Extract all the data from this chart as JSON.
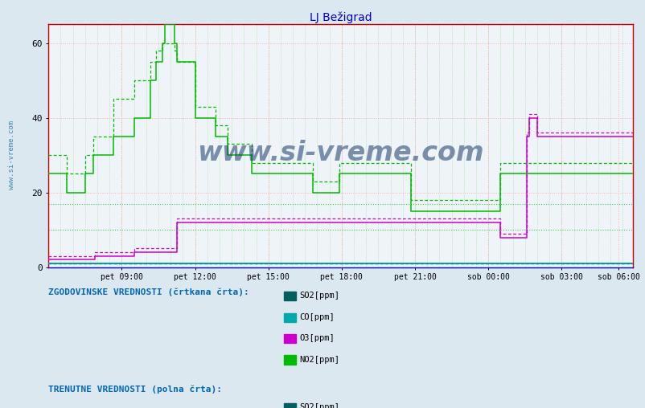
{
  "title": "LJ Bežigrad",
  "title_color": "#0000cc",
  "bg_color": "#dce8f0",
  "plot_bg_color": "#eef4f8",
  "watermark": "www.si-vreme.com",
  "watermark_color": "#1a3a6a",
  "xlim_max": 287,
  "ylim": [
    0,
    65
  ],
  "yticks": [
    0,
    20,
    40,
    60
  ],
  "xtick_labels": [
    "pet 09:00",
    "pet 12:00",
    "pet 15:00",
    "pet 18:00",
    "pet 21:00",
    "sob 00:00",
    "sob 03:00",
    "sob 06:00"
  ],
  "xtick_positions": [
    36,
    72,
    108,
    144,
    180,
    216,
    252,
    280
  ],
  "legend_hist_label": "ZGODOVINSKE VREDNOSTI (črtkana črta):",
  "legend_curr_label": "TRENUTNE VREDNOSTI (polna črta):",
  "legend_items": [
    "SO2[ppm]",
    "CO[ppm]",
    "O3[ppm]",
    "NO2[ppm]"
  ],
  "c_SO2": "#006060",
  "c_CO": "#00aaaa",
  "c_O3": "#cc00cc",
  "c_NO2": "#00bb00",
  "hlines_dotted": [
    10,
    17
  ],
  "n_points": 288,
  "NO2_solid": [
    25,
    25,
    25,
    25,
    25,
    25,
    25,
    25,
    25,
    20,
    20,
    20,
    20,
    20,
    20,
    20,
    20,
    20,
    25,
    25,
    25,
    25,
    30,
    30,
    30,
    30,
    30,
    30,
    30,
    30,
    30,
    30,
    35,
    35,
    35,
    35,
    35,
    35,
    35,
    35,
    35,
    35,
    40,
    40,
    40,
    40,
    40,
    40,
    40,
    40,
    50,
    50,
    50,
    55,
    55,
    55,
    60,
    65,
    65,
    65,
    65,
    65,
    60,
    55,
    55,
    55,
    55,
    55,
    55,
    55,
    55,
    55,
    40,
    40,
    40,
    40,
    40,
    40,
    40,
    40,
    40,
    40,
    35,
    35,
    35,
    35,
    35,
    35,
    30,
    30,
    30,
    30,
    30,
    30,
    30,
    30,
    30,
    30,
    30,
    30,
    25,
    25,
    25,
    25,
    25,
    25,
    25,
    25,
    25,
    25,
    25,
    25,
    25,
    25,
    25,
    25,
    25,
    25,
    25,
    25,
    25,
    25,
    25,
    25,
    25,
    25,
    25,
    25,
    25,
    25,
    20,
    20,
    20,
    20,
    20,
    20,
    20,
    20,
    20,
    20,
    20,
    20,
    20,
    25,
    25,
    25,
    25,
    25,
    25,
    25,
    25,
    25,
    25,
    25,
    25,
    25,
    25,
    25,
    25,
    25,
    25,
    25,
    25,
    25,
    25,
    25,
    25,
    25,
    25,
    25,
    25,
    25,
    25,
    25,
    25,
    25,
    25,
    25,
    15,
    15,
    15,
    15,
    15,
    15,
    15,
    15,
    15,
    15,
    15,
    15,
    15,
    15,
    15,
    15,
    15,
    15,
    15,
    15,
    15,
    15,
    15,
    15,
    15,
    15,
    15,
    15,
    15,
    15,
    15,
    15,
    15,
    15,
    15,
    15,
    15,
    15,
    15,
    15,
    15,
    15,
    15,
    15,
    25,
    25,
    25,
    25,
    25,
    25,
    25,
    25,
    25,
    25,
    25,
    25,
    25,
    25,
    25,
    25,
    25,
    25,
    25,
    25,
    25,
    25,
    25,
    25,
    25,
    25,
    25,
    25,
    25,
    25,
    25,
    25,
    25,
    25,
    25,
    25,
    25,
    25,
    25,
    25,
    25,
    25,
    25,
    25,
    25,
    25,
    25,
    25,
    25,
    25,
    25,
    25,
    25,
    25,
    25,
    25,
    25,
    25,
    25,
    25,
    25,
    25,
    25,
    25,
    25,
    25
  ],
  "NO2_dashed": [
    30,
    30,
    30,
    30,
    30,
    30,
    30,
    30,
    30,
    25,
    25,
    25,
    25,
    25,
    25,
    25,
    25,
    25,
    30,
    30,
    30,
    30,
    35,
    35,
    35,
    35,
    35,
    35,
    35,
    35,
    35,
    35,
    45,
    45,
    45,
    45,
    45,
    45,
    45,
    45,
    45,
    45,
    50,
    50,
    50,
    50,
    50,
    50,
    50,
    50,
    55,
    55,
    55,
    58,
    58,
    58,
    60,
    60,
    60,
    60,
    60,
    60,
    58,
    55,
    55,
    55,
    55,
    55,
    55,
    55,
    55,
    55,
    43,
    43,
    43,
    43,
    43,
    43,
    43,
    43,
    43,
    43,
    38,
    38,
    38,
    38,
    38,
    38,
    33,
    33,
    33,
    33,
    33,
    33,
    33,
    33,
    33,
    33,
    33,
    33,
    28,
    28,
    28,
    28,
    28,
    28,
    28,
    28,
    28,
    28,
    28,
    28,
    28,
    28,
    28,
    28,
    28,
    28,
    28,
    28,
    28,
    28,
    28,
    28,
    28,
    28,
    28,
    28,
    28,
    28,
    23,
    23,
    23,
    23,
    23,
    23,
    23,
    23,
    23,
    23,
    23,
    23,
    23,
    28,
    28,
    28,
    28,
    28,
    28,
    28,
    28,
    28,
    28,
    28,
    28,
    28,
    28,
    28,
    28,
    28,
    28,
    28,
    28,
    28,
    28,
    28,
    28,
    28,
    28,
    28,
    28,
    28,
    28,
    28,
    28,
    28,
    28,
    28,
    18,
    18,
    18,
    18,
    18,
    18,
    18,
    18,
    18,
    18,
    18,
    18,
    18,
    18,
    18,
    18,
    18,
    18,
    18,
    18,
    18,
    18,
    18,
    18,
    18,
    18,
    18,
    18,
    18,
    18,
    18,
    18,
    18,
    18,
    18,
    18,
    18,
    18,
    18,
    18,
    18,
    18,
    18,
    18,
    28,
    28,
    28,
    28,
    28,
    28,
    28,
    28,
    28,
    28,
    28,
    28,
    28,
    28,
    28,
    28,
    28,
    28,
    28,
    28,
    28,
    28,
    28,
    28,
    28,
    28,
    28,
    28,
    28,
    28,
    28,
    28,
    28,
    28,
    28,
    28,
    28,
    28,
    28,
    28,
    28,
    28,
    28,
    28,
    28,
    28,
    28,
    28,
    28,
    28,
    28,
    28,
    28,
    28,
    28,
    28,
    28,
    28,
    28,
    28,
    28,
    28,
    28,
    28,
    28,
    28
  ],
  "O3_solid": [
    2,
    2,
    2,
    2,
    2,
    2,
    2,
    2,
    2,
    2,
    2,
    2,
    2,
    2,
    2,
    2,
    2,
    2,
    2,
    2,
    2,
    2,
    2,
    3,
    3,
    3,
    3,
    3,
    3,
    3,
    3,
    3,
    3,
    3,
    3,
    3,
    3,
    3,
    3,
    3,
    3,
    3,
    4,
    4,
    4,
    4,
    4,
    4,
    4,
    4,
    4,
    4,
    4,
    4,
    4,
    4,
    4,
    4,
    4,
    4,
    4,
    4,
    4,
    12,
    12,
    12,
    12,
    12,
    12,
    12,
    12,
    12,
    12,
    12,
    12,
    12,
    12,
    12,
    12,
    12,
    12,
    12,
    12,
    12,
    12,
    12,
    12,
    12,
    12,
    12,
    12,
    12,
    12,
    12,
    12,
    12,
    12,
    12,
    12,
    12,
    12,
    12,
    12,
    12,
    12,
    12,
    12,
    12,
    12,
    12,
    12,
    12,
    12,
    12,
    12,
    12,
    12,
    12,
    12,
    12,
    12,
    12,
    12,
    12,
    12,
    12,
    12,
    12,
    12,
    12,
    12,
    12,
    12,
    12,
    12,
    12,
    12,
    12,
    12,
    12,
    12,
    12,
    12,
    12,
    12,
    12,
    12,
    12,
    12,
    12,
    12,
    12,
    12,
    12,
    12,
    12,
    12,
    12,
    12,
    12,
    12,
    12,
    12,
    12,
    12,
    12,
    12,
    12,
    12,
    12,
    12,
    12,
    12,
    12,
    12,
    12,
    12,
    12,
    12,
    12,
    12,
    12,
    12,
    12,
    12,
    12,
    12,
    12,
    12,
    12,
    12,
    12,
    12,
    12,
    12,
    12,
    12,
    12,
    12,
    12,
    12,
    12,
    12,
    12,
    12,
    12,
    12,
    12,
    12,
    12,
    12,
    12,
    12,
    12,
    12,
    12,
    12,
    12,
    12,
    12,
    12,
    12,
    8,
    8,
    8,
    8,
    8,
    8,
    8,
    8,
    8,
    8,
    8,
    8,
    8,
    35,
    40,
    40,
    40,
    40,
    35,
    35,
    35,
    35,
    35,
    35,
    35,
    35,
    35,
    35,
    35,
    35,
    35,
    35,
    35,
    35,
    35,
    35,
    35,
    35,
    35,
    35,
    35,
    35,
    35,
    35,
    35,
    35,
    35,
    35,
    35,
    35,
    35,
    35,
    35,
    35,
    35,
    35,
    35,
    35,
    35,
    35,
    35,
    35,
    35,
    35,
    35,
    35
  ],
  "O3_dashed": [
    3,
    3,
    3,
    3,
    3,
    3,
    3,
    3,
    3,
    3,
    3,
    3,
    3,
    3,
    3,
    3,
    3,
    3,
    3,
    3,
    3,
    3,
    3,
    4,
    4,
    4,
    4,
    4,
    4,
    4,
    4,
    4,
    4,
    4,
    4,
    4,
    4,
    4,
    4,
    4,
    4,
    4,
    5,
    5,
    5,
    5,
    5,
    5,
    5,
    5,
    5,
    5,
    5,
    5,
    5,
    5,
    5,
    5,
    5,
    5,
    5,
    5,
    5,
    13,
    13,
    13,
    13,
    13,
    13,
    13,
    13,
    13,
    13,
    13,
    13,
    13,
    13,
    13,
    13,
    13,
    13,
    13,
    13,
    13,
    13,
    13,
    13,
    13,
    13,
    13,
    13,
    13,
    13,
    13,
    13,
    13,
    13,
    13,
    13,
    13,
    13,
    13,
    13,
    13,
    13,
    13,
    13,
    13,
    13,
    13,
    13,
    13,
    13,
    13,
    13,
    13,
    13,
    13,
    13,
    13,
    13,
    13,
    13,
    13,
    13,
    13,
    13,
    13,
    13,
    13,
    13,
    13,
    13,
    13,
    13,
    13,
    13,
    13,
    13,
    13,
    13,
    13,
    13,
    13,
    13,
    13,
    13,
    13,
    13,
    13,
    13,
    13,
    13,
    13,
    13,
    13,
    13,
    13,
    13,
    13,
    13,
    13,
    13,
    13,
    13,
    13,
    13,
    13,
    13,
    13,
    13,
    13,
    13,
    13,
    13,
    13,
    13,
    13,
    13,
    13,
    13,
    13,
    13,
    13,
    13,
    13,
    13,
    13,
    13,
    13,
    13,
    13,
    13,
    13,
    13,
    13,
    13,
    13,
    13,
    13,
    13,
    13,
    13,
    13,
    13,
    13,
    13,
    13,
    13,
    13,
    13,
    13,
    13,
    13,
    13,
    13,
    13,
    13,
    13,
    13,
    13,
    13,
    9,
    9,
    9,
    9,
    9,
    9,
    9,
    9,
    9,
    9,
    9,
    9,
    9,
    36,
    41,
    41,
    41,
    41,
    36,
    36,
    36,
    36,
    36,
    36,
    36,
    36,
    36,
    36,
    36,
    36,
    36,
    36,
    36,
    36,
    36,
    36,
    36,
    36,
    36,
    36,
    36,
    36,
    36,
    36,
    36,
    36,
    36,
    36,
    36,
    36,
    36,
    36,
    36,
    36,
    36,
    36,
    36,
    36,
    36,
    36,
    36,
    36,
    36,
    36,
    36,
    36
  ],
  "CO_solid": [
    1,
    1,
    1,
    1,
    1,
    1,
    1,
    1,
    1,
    1,
    1,
    1,
    1,
    1,
    1,
    1,
    1,
    1,
    1,
    1,
    1,
    1,
    1,
    1,
    1,
    1,
    1,
    1,
    1,
    1,
    1,
    1,
    1,
    1,
    1,
    1,
    1,
    1,
    1,
    1,
    1,
    1,
    1,
    1,
    1,
    1,
    1,
    1,
    1,
    1,
    1,
    1,
    1,
    1,
    1,
    1,
    1,
    1,
    1,
    1,
    1,
    1,
    1,
    1,
    1,
    1,
    1,
    1,
    1,
    1,
    1,
    1,
    1,
    1,
    1,
    1,
    1,
    1,
    1,
    1,
    1,
    1,
    1,
    1,
    1,
    1,
    1,
    1,
    1,
    1,
    1,
    1,
    1,
    1,
    1,
    1,
    1,
    1,
    1,
    1,
    1,
    1,
    1,
    1,
    1,
    1,
    1,
    1,
    1,
    1,
    1,
    1,
    1,
    1,
    1,
    1,
    1,
    1,
    1,
    1,
    1,
    1,
    1,
    1,
    1,
    1,
    1,
    1,
    1,
    1,
    1,
    1,
    1,
    1,
    1,
    1,
    1,
    1,
    1,
    1,
    1,
    1,
    1,
    1,
    1,
    1,
    1,
    1,
    1,
    1,
    1,
    1,
    1,
    1,
    1,
    1,
    1,
    1,
    1,
    1,
    1,
    1,
    1,
    1,
    1,
    1,
    1,
    1,
    1,
    1,
    1,
    1,
    1,
    1,
    1,
    1,
    1,
    1,
    1,
    1,
    1,
    1,
    1,
    1,
    1,
    1,
    1,
    1,
    1,
    1,
    1,
    1,
    1,
    1,
    1,
    1,
    1,
    1,
    1,
    1,
    1,
    1,
    1,
    1,
    1,
    1,
    1,
    1,
    1,
    1,
    1,
    1,
    1,
    1,
    1,
    1,
    1,
    1,
    1,
    1,
    1,
    1,
    1,
    1,
    1,
    1,
    1,
    1,
    1,
    1,
    1,
    1,
    1,
    1,
    1,
    1,
    1,
    1,
    1,
    1,
    1,
    1,
    1,
    1,
    1,
    1,
    1,
    1,
    1,
    1,
    1,
    1,
    1,
    1,
    1,
    1,
    1,
    1,
    1,
    1,
    1,
    1,
    1,
    1,
    1,
    1,
    1,
    1,
    1,
    1,
    1,
    1,
    1,
    1,
    1,
    1,
    1,
    1,
    1,
    1,
    1,
    1,
    1,
    1,
    1,
    1,
    1,
    1
  ],
  "SO2_solid": [
    1,
    1,
    1,
    1,
    1,
    1,
    1,
    1,
    1,
    1,
    1,
    1,
    1,
    1,
    1,
    1,
    1,
    1,
    1,
    1,
    1,
    1,
    1,
    1,
    1,
    1,
    1,
    1,
    1,
    1,
    1,
    1,
    1,
    1,
    1,
    1,
    1,
    1,
    1,
    1,
    1,
    1,
    1,
    1,
    1,
    1,
    1,
    1,
    1,
    1,
    1,
    1,
    1,
    1,
    1,
    1,
    1,
    1,
    1,
    1,
    1,
    1,
    1,
    1,
    1,
    1,
    1,
    1,
    1,
    1,
    1,
    1,
    1,
    1,
    1,
    1,
    1,
    1,
    1,
    1,
    1,
    1,
    1,
    1,
    1,
    1,
    1,
    1,
    1,
    1,
    1,
    1,
    1,
    1,
    1,
    1,
    1,
    1,
    1,
    1,
    1,
    1,
    1,
    1,
    1,
    1,
    1,
    1,
    1,
    1,
    1,
    1,
    1,
    1,
    1,
    1,
    1,
    1,
    1,
    1,
    1,
    1,
    1,
    1,
    1,
    1,
    1,
    1,
    1,
    1,
    1,
    1,
    1,
    1,
    1,
    1,
    1,
    1,
    1,
    1,
    1,
    1,
    1,
    1,
    1,
    1,
    1,
    1,
    1,
    1,
    1,
    1,
    1,
    1,
    1,
    1,
    1,
    1,
    1,
    1,
    1,
    1,
    1,
    1,
    1,
    1,
    1,
    1,
    1,
    1,
    1,
    1,
    1,
    1,
    1,
    1,
    1,
    1,
    1,
    1,
    1,
    1,
    1,
    1,
    1,
    1,
    1,
    1,
    1,
    1,
    1,
    1,
    1,
    1,
    1,
    1,
    1,
    1,
    1,
    1,
    1,
    1,
    1,
    1,
    1,
    1,
    1,
    1,
    1,
    1,
    1,
    1,
    1,
    1,
    1,
    1,
    1,
    1,
    1,
    1,
    1,
    1,
    1,
    1,
    1,
    1,
    1,
    1,
    1,
    1,
    1,
    1,
    1,
    1,
    1,
    1,
    1,
    1,
    1,
    1,
    1,
    1,
    1,
    1,
    1,
    1,
    1,
    1,
    1,
    1,
    1,
    1,
    1,
    1,
    1,
    1,
    1,
    1,
    1,
    1,
    1,
    1,
    1,
    1,
    1,
    1,
    1,
    1,
    1,
    1,
    1,
    1,
    1,
    1,
    1,
    1,
    1,
    1,
    1,
    1,
    1,
    1,
    1,
    1,
    1,
    1,
    1,
    1
  ],
  "SO2_dashed": [
    1,
    1,
    1,
    1,
    1,
    1,
    1,
    1,
    1,
    1,
    1,
    1,
    1,
    1,
    1,
    1,
    1,
    1,
    1,
    1,
    1,
    1,
    1,
    1,
    1,
    1,
    1,
    1,
    1,
    1,
    1,
    1,
    1,
    1,
    1,
    1,
    1,
    1,
    1,
    1,
    1,
    1,
    1,
    1,
    1,
    1,
    1,
    1,
    1,
    1,
    1,
    1,
    1,
    1,
    1,
    1,
    1,
    1,
    1,
    1,
    1,
    1,
    1,
    1,
    1,
    1,
    1,
    1,
    1,
    1,
    1,
    1,
    1,
    1,
    1,
    1,
    1,
    1,
    1,
    1,
    1,
    1,
    1,
    1,
    1,
    1,
    1,
    1,
    1,
    1,
    1,
    1,
    1,
    1,
    1,
    1,
    1,
    1,
    1,
    1,
    1,
    1,
    1,
    1,
    1,
    1,
    1,
    1,
    1,
    1,
    1,
    1,
    1,
    1,
    1,
    1,
    1,
    1,
    1,
    1,
    1,
    1,
    1,
    1,
    1,
    1,
    1,
    1,
    1,
    1,
    1,
    1,
    1,
    1,
    1,
    1,
    1,
    1,
    1,
    1,
    1,
    1,
    1,
    1,
    1,
    1,
    1,
    1,
    1,
    1,
    1,
    1,
    1,
    1,
    1,
    1,
    1,
    1,
    1,
    1,
    1,
    1,
    1,
    1,
    1,
    1,
    1,
    1,
    1,
    1,
    1,
    1,
    1,
    1,
    1,
    1,
    1,
    1,
    1,
    1,
    1,
    1,
    1,
    1,
    1,
    1,
    1,
    1,
    1,
    1,
    1,
    1,
    1,
    1,
    1,
    1,
    1,
    1,
    1,
    1,
    1,
    1,
    1,
    1,
    1,
    1,
    1,
    1,
    1,
    1,
    1,
    1,
    1,
    1,
    1,
    1,
    1,
    1,
    1,
    1,
    1,
    1,
    1,
    1,
    1,
    1,
    1,
    1,
    1,
    1,
    1,
    1,
    1,
    1,
    1,
    1,
    1,
    1,
    1,
    1,
    1,
    1,
    1,
    1,
    1,
    1,
    1,
    1,
    1,
    1,
    1,
    1,
    1,
    1,
    1,
    1,
    1,
    1,
    1,
    1,
    1,
    1,
    1,
    1,
    1,
    1,
    1,
    1,
    1,
    1,
    1,
    1,
    1,
    1,
    1,
    1,
    1,
    1,
    1,
    1,
    1,
    1,
    1,
    1,
    1,
    1,
    1,
    1
  ],
  "CO_dashed": [
    1,
    1,
    1,
    1,
    1,
    1,
    1,
    1,
    1,
    1,
    1,
    1,
    1,
    1,
    1,
    1,
    1,
    1,
    1,
    1,
    1,
    1,
    1,
    1,
    1,
    1,
    1,
    1,
    1,
    1,
    1,
    1,
    1,
    1,
    1,
    1,
    1,
    1,
    1,
    1,
    1,
    1,
    1,
    1,
    1,
    1,
    1,
    1,
    1,
    1,
    1,
    1,
    1,
    1,
    1,
    1,
    1,
    1,
    1,
    1,
    1,
    1,
    1,
    1,
    1,
    1,
    1,
    1,
    1,
    1,
    1,
    1,
    1,
    1,
    1,
    1,
    1,
    1,
    1,
    1,
    1,
    1,
    1,
    1,
    1,
    1,
    1,
    1,
    1,
    1,
    1,
    1,
    1,
    1,
    1,
    1,
    1,
    1,
    1,
    1,
    1,
    1,
    1,
    1,
    1,
    1,
    1,
    1,
    1,
    1,
    1,
    1,
    1,
    1,
    1,
    1,
    1,
    1,
    1,
    1,
    1,
    1,
    1,
    1,
    1,
    1,
    1,
    1,
    1,
    1,
    1,
    1,
    1,
    1,
    1,
    1,
    1,
    1,
    1,
    1,
    1,
    1,
    1,
    1,
    1,
    1,
    1,
    1,
    1,
    1,
    1,
    1,
    1,
    1,
    1,
    1,
    1,
    1,
    1,
    1,
    1,
    1,
    1,
    1,
    1,
    1,
    1,
    1,
    1,
    1,
    1,
    1,
    1,
    1,
    1,
    1,
    1,
    1,
    1,
    1,
    1,
    1,
    1,
    1,
    1,
    1,
    1,
    1,
    1,
    1,
    1,
    1,
    1,
    1,
    1,
    1,
    1,
    1,
    1,
    1,
    1,
    1,
    1,
    1,
    1,
    1,
    1,
    1,
    1,
    1,
    1,
    1,
    1,
    1,
    1,
    1,
    1,
    1,
    1,
    1,
    1,
    1,
    1,
    1,
    1,
    1,
    1,
    1,
    1,
    1,
    1,
    1,
    1,
    1,
    1,
    1,
    1,
    1,
    1,
    1,
    1,
    1,
    1,
    1,
    1,
    1,
    1,
    1,
    1,
    1,
    1,
    1,
    1,
    1,
    1,
    1,
    1,
    1,
    1,
    1,
    1,
    1,
    1,
    1,
    1,
    1,
    1,
    1,
    1,
    1,
    1,
    1,
    1,
    1,
    1,
    1,
    1,
    1,
    1,
    1,
    1,
    1,
    1,
    1,
    1,
    1,
    1,
    1
  ]
}
